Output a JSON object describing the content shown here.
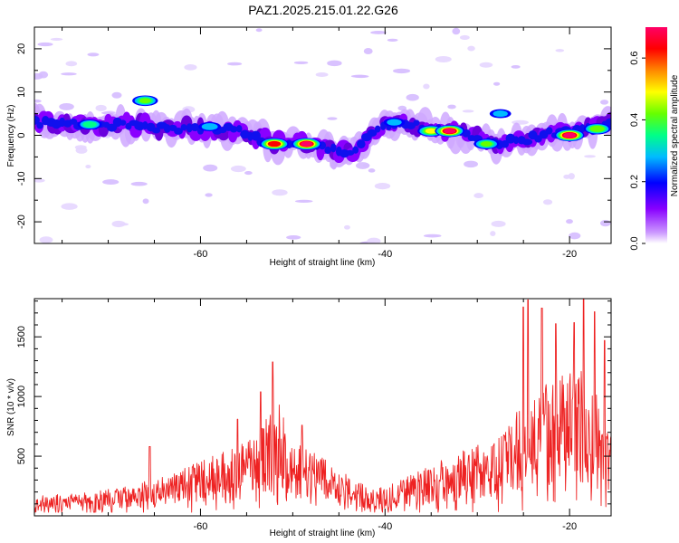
{
  "title": "PAZ1.2025.215.01.22.G26",
  "chart_data": [
    {
      "type": "heatmap",
      "xlabel": "Height of straight line (km)",
      "ylabel": "Frequency (Hz)",
      "xlim": [
        -78,
        -15.5
      ],
      "ylim": [
        -25,
        25
      ],
      "xticks": [
        -60,
        -40,
        -20
      ],
      "yticks": [
        -20,
        -10,
        0,
        10,
        20
      ],
      "colorbar": {
        "label": "Normalized spectral amplitude",
        "range": [
          0.0,
          0.7
        ],
        "ticks": [
          0.0,
          0.2,
          0.4,
          0.6
        ],
        "colormap": [
          "#ffffff",
          "#cc99ff",
          "#8800ff",
          "#0000ff",
          "#00bbff",
          "#00ff88",
          "#66ff00",
          "#ffff00",
          "#ff8800",
          "#ff0000",
          "#ff0066"
        ]
      },
      "ridge": [
        {
          "x": -76,
          "y": 3.0
        },
        {
          "x": -70,
          "y": 2.5
        },
        {
          "x": -66,
          "y": 2.0
        },
        {
          "x": -62,
          "y": 1.5
        },
        {
          "x": -58,
          "y": 1.5
        },
        {
          "x": -55,
          "y": 0.5
        },
        {
          "x": -52,
          "y": -2.0
        },
        {
          "x": -48,
          "y": -2.0
        },
        {
          "x": -45,
          "y": -4.0
        },
        {
          "x": -43,
          "y": -3.0
        },
        {
          "x": -40,
          "y": 3.0
        },
        {
          "x": -37,
          "y": 2.5
        },
        {
          "x": -34,
          "y": 1.0
        },
        {
          "x": -31,
          "y": 0.0
        },
        {
          "x": -28,
          "y": -2.0
        },
        {
          "x": -25,
          "y": -1.0
        },
        {
          "x": -22,
          "y": 0.5
        },
        {
          "x": -18,
          "y": 1.5
        },
        {
          "x": -15.5,
          "y": 3.0
        }
      ],
      "peaks": [
        {
          "x": -72,
          "y": 2.5,
          "value": 0.38
        },
        {
          "x": -66,
          "y": 8.0,
          "value": 0.42
        },
        {
          "x": -59,
          "y": 2.0,
          "value": 0.32
        },
        {
          "x": -52,
          "y": -2.0,
          "value": 0.62
        },
        {
          "x": -48.5,
          "y": -2.0,
          "value": 0.66
        },
        {
          "x": -39,
          "y": 3.0,
          "value": 0.3
        },
        {
          "x": -35,
          "y": 1.0,
          "value": 0.5
        },
        {
          "x": -33,
          "y": 1.0,
          "value": 0.66
        },
        {
          "x": -29,
          "y": -2.0,
          "value": 0.42
        },
        {
          "x": -27.5,
          "y": 5.0,
          "value": 0.3
        },
        {
          "x": -20,
          "y": 0.0,
          "value": 0.68
        },
        {
          "x": -17,
          "y": 1.5,
          "value": 0.48
        }
      ]
    },
    {
      "type": "line",
      "xlabel": "Height of straight line (km)",
      "ylabel": "SNR (10 * v/v)",
      "xlim": [
        -78,
        -15.5
      ],
      "ylim": [
        0,
        1820
      ],
      "xticks": [
        -60,
        -40,
        -20
      ],
      "yticks": [
        500,
        1000,
        1500
      ],
      "color": "#ee2222",
      "envelope": [
        {
          "x": -78,
          "y": 150
        },
        {
          "x": -72,
          "y": 180
        },
        {
          "x": -68,
          "y": 230
        },
        {
          "x": -64,
          "y": 300
        },
        {
          "x": -60,
          "y": 420
        },
        {
          "x": -57,
          "y": 500
        },
        {
          "x": -54,
          "y": 620
        },
        {
          "x": -52,
          "y": 1000
        },
        {
          "x": -50,
          "y": 520
        },
        {
          "x": -48,
          "y": 560
        },
        {
          "x": -46,
          "y": 400
        },
        {
          "x": -43,
          "y": 260
        },
        {
          "x": -40,
          "y": 220
        },
        {
          "x": -37,
          "y": 320
        },
        {
          "x": -34,
          "y": 420
        },
        {
          "x": -31,
          "y": 520
        },
        {
          "x": -28,
          "y": 600
        },
        {
          "x": -25,
          "y": 850
        },
        {
          "x": -22,
          "y": 1100
        },
        {
          "x": -19,
          "y": 1150
        },
        {
          "x": -15.5,
          "y": 800
        }
      ],
      "spikes": [
        {
          "x": -65.5,
          "y": 580
        },
        {
          "x": -56,
          "y": 810
        },
        {
          "x": -53.5,
          "y": 1040
        },
        {
          "x": -52.2,
          "y": 1290
        },
        {
          "x": -49,
          "y": 760
        },
        {
          "x": -25,
          "y": 1750
        },
        {
          "x": -24.5,
          "y": 1810
        },
        {
          "x": -23,
          "y": 1740
        },
        {
          "x": -21.5,
          "y": 1610
        },
        {
          "x": -19.5,
          "y": 1620
        },
        {
          "x": -18.5,
          "y": 1830
        },
        {
          "x": -17.3,
          "y": 1710
        },
        {
          "x": -16.2,
          "y": 1470
        }
      ]
    }
  ]
}
